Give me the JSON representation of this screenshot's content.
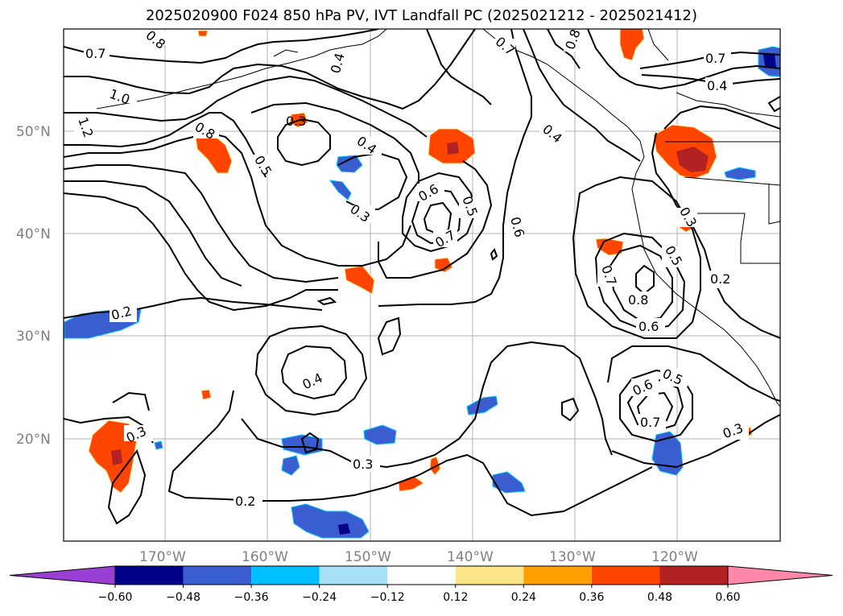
{
  "title": "2025020900 F024 850 hPa PV, IVT Landfall PC (2025021212 - 2025021412)",
  "lat_labels": [
    "50°N",
    "40°N",
    "30°N",
    "20°N"
  ],
  "lon_labels": [
    "170°W",
    "160°W",
    "150°W",
    "140°W",
    "130°W",
    "120°W"
  ],
  "colorbar": {
    "tick_labels": [
      "−0.60",
      "−0.48",
      "−0.36",
      "−0.24",
      "−0.12",
      "0.12",
      "0.24",
      "0.36",
      "0.48",
      "0.60"
    ],
    "colors": [
      "#9a3fd4",
      "#00008b",
      "#3a5ed0",
      "#00bfff",
      "#a8e0f8",
      "#ffffff",
      "#fde68a",
      "#ff9f00",
      "#ff4500",
      "#b22222",
      "#ff88aa"
    ]
  },
  "contour_labels": [
    "0.7",
    "0.8",
    "1.0",
    "1.2",
    "0.8",
    "0.3",
    "0.5",
    "0.4",
    "0.3",
    "0.6",
    "0.5",
    "0.7",
    "0.4",
    "0.6",
    "0.7",
    "0.8",
    "0.7",
    "0.4",
    "0.4",
    "0.3",
    "0.5",
    "0.7",
    "0.8",
    "0.6",
    "0.2",
    "0.2",
    "0.4",
    "0.3",
    "0.3",
    "0.2",
    "0.6",
    "0.5",
    "0.7",
    "0.3"
  ]
}
